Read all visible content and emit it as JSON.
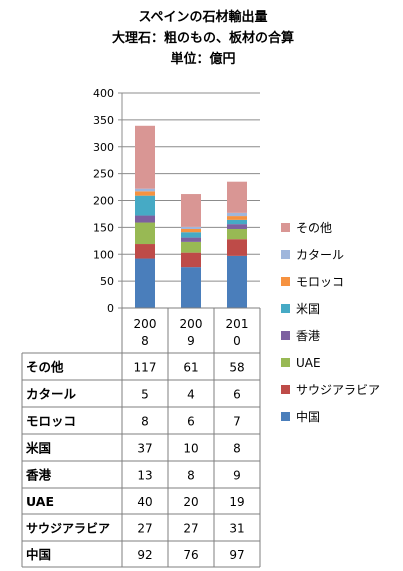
{
  "chart_data": {
    "type": "bar",
    "stacked": true,
    "title_lines": [
      "スペインの石材輸出量",
      "大理石：粗のもの、板材の合算",
      "単位：億円"
    ],
    "categories": [
      "2008",
      "2009",
      "2010"
    ],
    "category_display": [
      [
        "200",
        "8"
      ],
      [
        "200",
        "9"
      ],
      [
        "201",
        "0"
      ]
    ],
    "ylim": [
      0,
      400
    ],
    "yticks": [
      0,
      50,
      100,
      150,
      200,
      250,
      300,
      350,
      400
    ],
    "grid": true,
    "legend_position": "right",
    "series": [
      {
        "name": "中国",
        "color": "#4a7ebb",
        "values": [
          92,
          76,
          97
        ]
      },
      {
        "name": "サウジアラビア",
        "color": "#be4b48",
        "values": [
          27,
          27,
          31
        ]
      },
      {
        "name": "UAE",
        "color": "#98b954",
        "values": [
          40,
          20,
          19
        ]
      },
      {
        "name": "香港",
        "color": "#7d60a0",
        "values": [
          13,
          8,
          9
        ]
      },
      {
        "name": "米国",
        "color": "#46aac5",
        "values": [
          37,
          10,
          8
        ]
      },
      {
        "name": "モロッコ",
        "color": "#f69240",
        "values": [
          8,
          6,
          7
        ]
      },
      {
        "name": "カタール",
        "color": "#9fb6dc",
        "values": [
          5,
          4,
          6
        ]
      },
      {
        "name": "その他",
        "color": "#d99694",
        "values": [
          117,
          61,
          58
        ]
      }
    ]
  }
}
